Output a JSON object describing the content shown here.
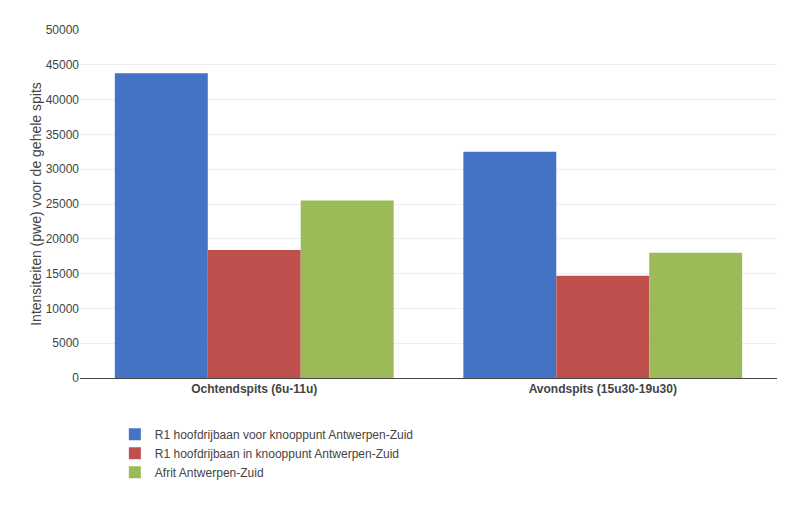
{
  "chart_data": {
    "type": "bar",
    "categories": [
      "Ochtendspits (6u-11u)",
      "Avondspits (15u30-19u30)"
    ],
    "series": [
      {
        "name": "R1 hoofdrijbaan voor knooppunt Antwerpen-Zuid",
        "color": "#4472C4",
        "values": [
          43800,
          32500
        ]
      },
      {
        "name": "R1 hoofdrijbaan in knooppunt Antwerpen-Zuid",
        "color": "#C0504D",
        "values": [
          18400,
          14700
        ]
      },
      {
        "name": "Afrit Antwerpen-Zuid",
        "color": "#9BBB59",
        "values": [
          25500,
          18000
        ]
      }
    ],
    "ylabel": "Intensiteiten (pwe) voor de gehele spits",
    "ylim": [
      0,
      50000
    ],
    "yticks": [
      0,
      5000,
      10000,
      15000,
      20000,
      25000,
      30000,
      35000,
      40000,
      45000,
      50000
    ],
    "grid": true,
    "legend": "bottom"
  }
}
